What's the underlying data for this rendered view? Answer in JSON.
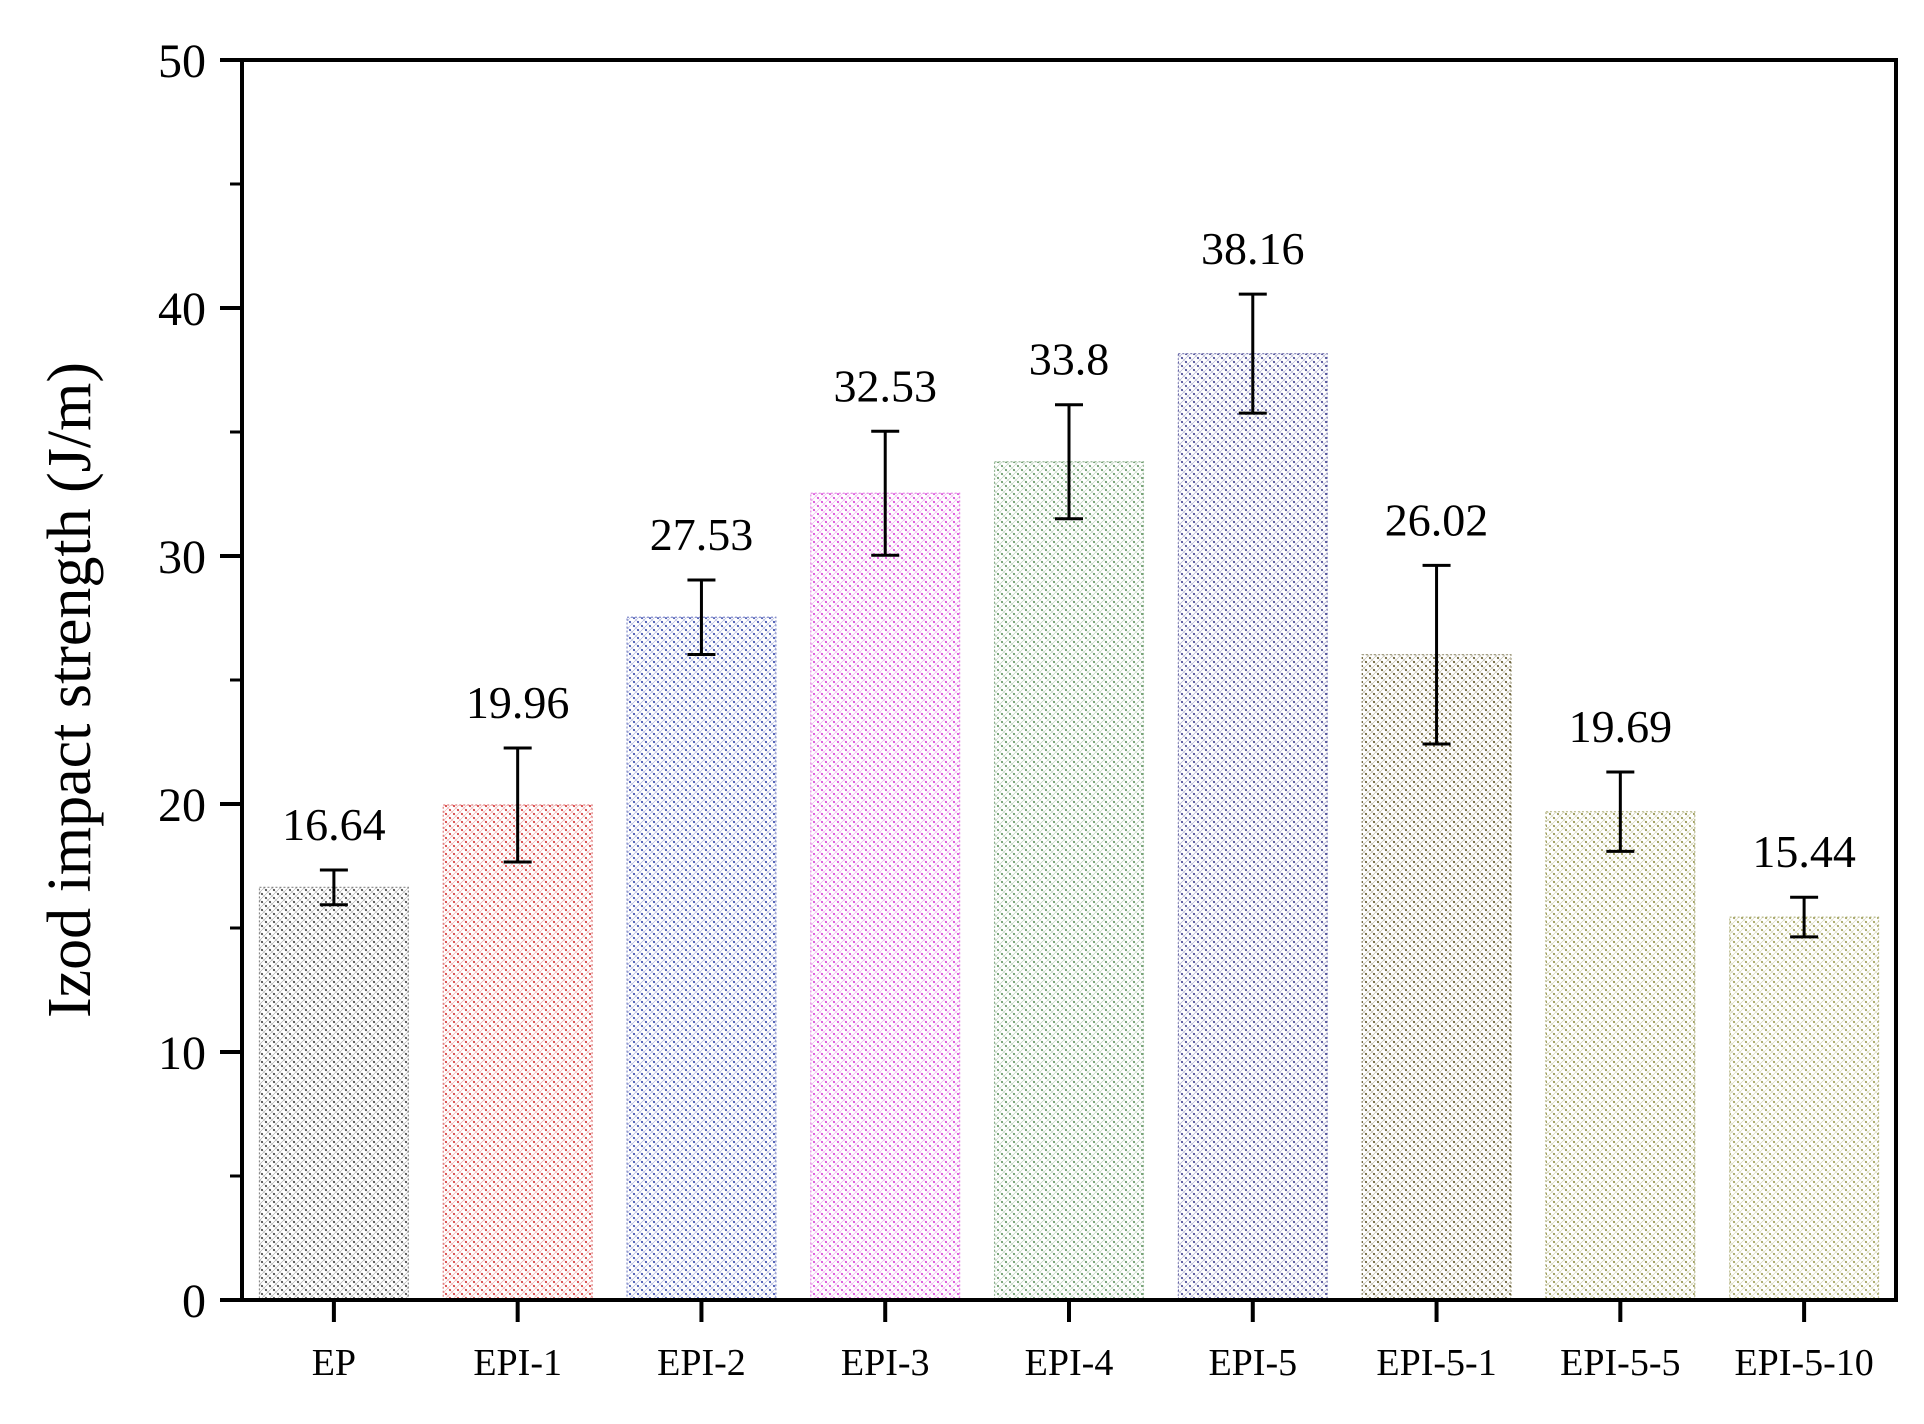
{
  "chart_data": {
    "type": "bar",
    "title": "",
    "xlabel": "",
    "ylabel": "Izod impact strength (J/m)",
    "ylim": [
      0,
      50
    ],
    "yticks": [
      0,
      10,
      20,
      30,
      40,
      50
    ],
    "grid": false,
    "categories": [
      "EP",
      "EPI-1",
      "EPI-2",
      "EPI-3",
      "EPI-4",
      "EPI-5",
      "EPI-5-1",
      "EPI-5-5",
      "EPI-5-10"
    ],
    "values": [
      16.64,
      19.96,
      27.53,
      32.53,
      33.8,
      38.16,
      26.02,
      19.69,
      15.44
    ],
    "value_labels": [
      "16.64",
      "19.96",
      "27.53",
      "32.53",
      "33.8",
      "38.16",
      "26.02",
      "19.69",
      "15.44"
    ],
    "errors": [
      0.7,
      2.3,
      1.5,
      2.5,
      2.3,
      2.4,
      3.6,
      1.6,
      0.8
    ],
    "bar_colors": [
      "#3a3a3a",
      "#d22b2b",
      "#2e3fa8",
      "#d63ad6",
      "#5a8f5a",
      "#3a3a8c",
      "#5a5020",
      "#8c8c40",
      "#9a9a50"
    ]
  }
}
